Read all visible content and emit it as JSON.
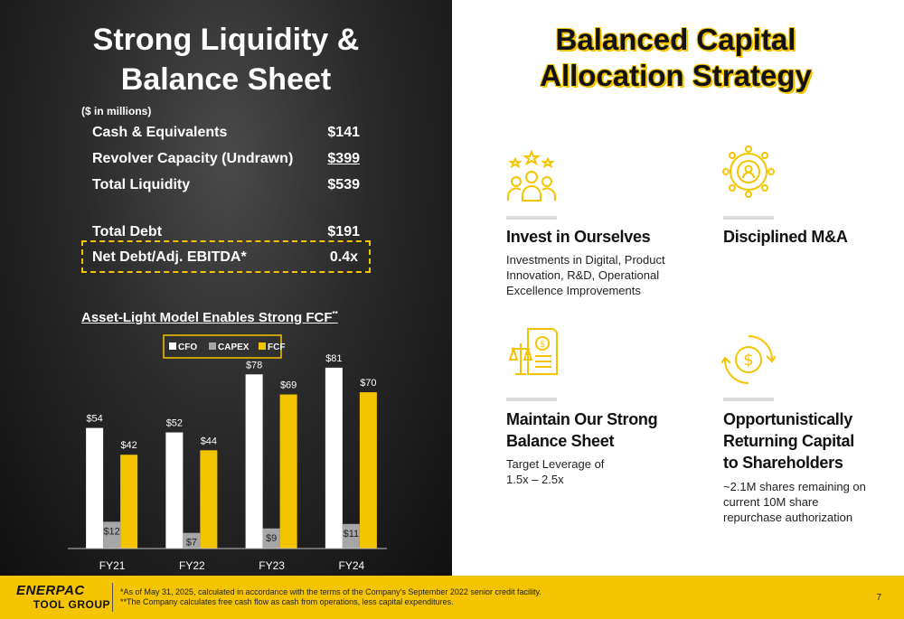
{
  "left": {
    "title_line1": "Strong Liquidity &",
    "title_line2": "Balance Sheet",
    "units": "($ in millions)",
    "rows": [
      {
        "label": "Cash & Equivalents",
        "value": "$141"
      },
      {
        "label": "Revolver Capacity (Undrawn)",
        "value": "$399"
      },
      {
        "label": "Total Liquidity",
        "value": "$539"
      },
      {
        "label": "Total Debt",
        "value": "$191"
      },
      {
        "label": "Net Debt/Adj. EBITDA*",
        "value": "0.4x"
      }
    ],
    "chart_title": "Asset-Light Model Enables Strong FCF",
    "chart_title_mark": "**"
  },
  "chart_data": {
    "type": "bar",
    "categories": [
      "FY21",
      "FY22",
      "FY23",
      "FY24"
    ],
    "series": [
      {
        "name": "CFO",
        "values": [
          54,
          52,
          78,
          81
        ],
        "labels": [
          "$54",
          "$52",
          "$78",
          "$81"
        ],
        "color": "#ffffff"
      },
      {
        "name": "CAPEX",
        "values": [
          12,
          7,
          9,
          11
        ],
        "labels": [
          "$12",
          "$7",
          "$9",
          "$11"
        ],
        "color": "#a6a6a6"
      },
      {
        "name": "FCF",
        "values": [
          42,
          44,
          69,
          70
        ],
        "labels": [
          "$42",
          "$44",
          "$69",
          "$70"
        ],
        "color": "#f5c400"
      }
    ],
    "ylim": [
      0,
      85
    ],
    "legend_position": "top",
    "grid": false
  },
  "right": {
    "title_line1": "Balanced Capital",
    "title_line2": "Allocation Strategy",
    "pillars": [
      {
        "icon": "people-stars-icon",
        "heading": [
          "Invest in Ourselves"
        ],
        "body": [
          "Investments in Digital, Product",
          "Innovation, R&D, Operational",
          "Excellence Improvements"
        ]
      },
      {
        "icon": "network-people-icon",
        "heading": [
          "Disciplined M&A"
        ],
        "body": []
      },
      {
        "icon": "balance-document-icon",
        "heading": [
          "Maintain Our Strong",
          "Balance Sheet"
        ],
        "body": [
          "Target Leverage of",
          "1.5x – 2.5x"
        ]
      },
      {
        "icon": "dollar-cycle-icon",
        "heading": [
          "Opportunistically",
          "Returning Capital",
          "to Shareholders"
        ],
        "body": [
          "~2.1M shares remaining on",
          "current 10M share",
          "repurchase authorization"
        ]
      }
    ]
  },
  "colors": {
    "accent": "#f5c400",
    "dark": "#1a1a1a"
  },
  "footer": {
    "logo_line1": "ENERPAC",
    "logo_line2": "TOOL GROUP",
    "note1": "*As of May 31, 2025, calculated in accordance with the terms of the Company's September 2022 senior credit facility.",
    "note2": "**The Company calculates free cash flow as cash from operations, less capital expenditures.",
    "page_number": "7"
  }
}
